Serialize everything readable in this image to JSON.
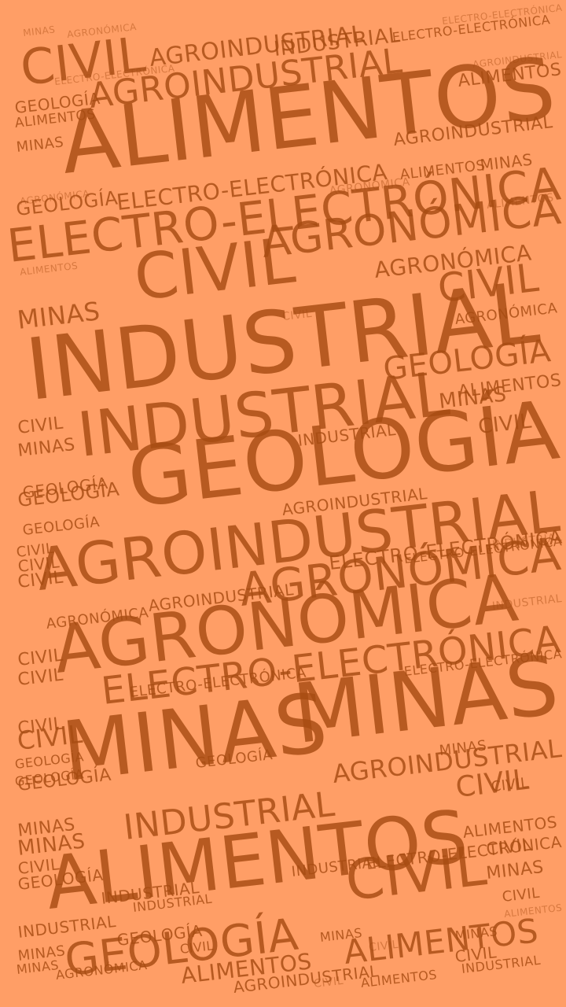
{
  "background_color": "#FF9E66",
  "word_color": "#A84C12",
  "words": [
    "CIVIL",
    "AGROINDUSTRIAL",
    "ALIMENTOS",
    "INDUSTRIAL",
    "GEOLOGÍA",
    "ELECTRO-ELECTRÓNICA",
    "AGRONÓMICA",
    "MINAS",
    "CIVIL",
    "INDUSTRIAL",
    "GEOLOGÍA",
    "AGROINDUSTRIAL",
    "AGRONÓMICA",
    "ELECTRO-ELECTRÓNICA",
    "MINAS",
    "MINAS",
    "ALIMENTOS",
    "CIVIL",
    "GEOLOGÍA",
    "ALIMENTOS",
    "AGROINDUSTRIAL",
    "INDUSTRIAL",
    "CIVIL",
    "GEOLOGÍA",
    "AGRONÓMICA",
    "ELECTRO-ELECTRÓNICA",
    "ALIMENTOS",
    "MINAS",
    "CIVIL",
    "ALIMENTOS",
    "GEOLOGÍA",
    "MINAS",
    "CIVIL",
    "GEOLOGÍA",
    "GEOLOGÍA",
    "ELECTRO-ELECTRÓNICA",
    "CIVIL",
    "INDUSTRIAL",
    "GEOLOGÍA",
    "MINAS",
    "CIVIL",
    "ALIMENTOS",
    "CIVIL",
    "GEOLOGÍA",
    "MINAS",
    "AGRONÓMICA",
    "CIVIL",
    "CIVIL",
    "MINAS",
    "MINAS",
    "GEOLOGÍA",
    "MINAS",
    "GEOLOGÍA",
    "ALIMENTOS",
    "INDUSTRIAL",
    "AGROINDUSTRIAL",
    "CIVIL",
    "AGROINDUSTRIAL",
    "GEOLOGÍA",
    "ELECTRO-ELECTRÓNICA",
    "CIVIL",
    "AGROINDUSTRIAL",
    "AGRONÓMICA",
    "CIVIL",
    "CIVIL",
    "AGRONÓMICA",
    "ELECTRO-ELECTRÓNICA",
    "CIVIL",
    "ELECTRO-ELECTRÓNICA",
    "MINAS",
    "MINAS",
    "MINAS",
    "ALIMENTOS",
    "AGROINDUSTRIAL",
    "INDUSTRIAL",
    "CIVIL",
    "INDUSTRIAL",
    "ELECTRO-ELECTRÓNICA",
    "ALIMENTOS",
    "INDUSTRIAL",
    "CIVIL",
    "ALIMENTOS",
    "CIVIL",
    "AGROINDUSTRIAL",
    "AGRONÓMICA",
    "ALIMENTOS",
    "INDUSTRIAL",
    "INDUSTRIAL",
    "GEOLOGÍA",
    "ELECTRO-ELECTRÓNICA",
    "CIVIL",
    "MINAS",
    "MINAS",
    "CIVIL",
    "GEOLOGÍA",
    "INDUSTRIAL",
    "CIVIL",
    "AGRONÓMICA",
    "AGRONÓMICA",
    "ALIMENTOS",
    "AGROINDUSTRIAL",
    "ELECTRO-ELECTRÓNICA",
    "INDUSTRIAL",
    "ALIMENTOS",
    "AGRONÓMICA",
    "ELECTRO-ELECTRÓNICA",
    "CIVIL",
    "MINAS"
  ]
}
